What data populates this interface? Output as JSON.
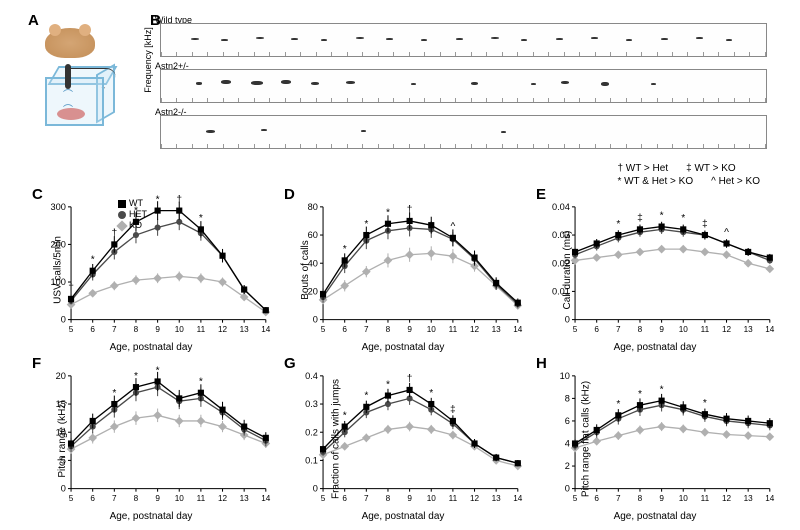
{
  "labels": {
    "A": "A",
    "B": "B",
    "C": "C",
    "D": "D",
    "E": "E",
    "F": "F",
    "G": "G",
    "H": "H"
  },
  "panelB": {
    "rows": [
      {
        "name": "Wild type",
        "calls": [
          {
            "x": 30,
            "y": 14,
            "w": 8,
            "h": 2
          },
          {
            "x": 60,
            "y": 15,
            "w": 7,
            "h": 2
          },
          {
            "x": 95,
            "y": 13,
            "w": 8,
            "h": 2
          },
          {
            "x": 130,
            "y": 14,
            "w": 7,
            "h": 2
          },
          {
            "x": 160,
            "y": 15,
            "w": 6,
            "h": 2
          },
          {
            "x": 195,
            "y": 13,
            "w": 8,
            "h": 2
          },
          {
            "x": 225,
            "y": 14,
            "w": 7,
            "h": 2
          },
          {
            "x": 260,
            "y": 15,
            "w": 6,
            "h": 2
          },
          {
            "x": 295,
            "y": 14,
            "w": 7,
            "h": 2
          },
          {
            "x": 330,
            "y": 13,
            "w": 8,
            "h": 2
          },
          {
            "x": 360,
            "y": 15,
            "w": 6,
            "h": 2
          },
          {
            "x": 395,
            "y": 14,
            "w": 7,
            "h": 2
          },
          {
            "x": 430,
            "y": 13,
            "w": 7,
            "h": 2
          },
          {
            "x": 465,
            "y": 15,
            "w": 6,
            "h": 2
          },
          {
            "x": 500,
            "y": 14,
            "w": 7,
            "h": 2
          },
          {
            "x": 535,
            "y": 13,
            "w": 7,
            "h": 2
          },
          {
            "x": 565,
            "y": 15,
            "w": 6,
            "h": 2
          }
        ]
      },
      {
        "name": "Astn2+/-",
        "calls": [
          {
            "x": 35,
            "y": 12,
            "w": 6,
            "h": 3
          },
          {
            "x": 60,
            "y": 10,
            "w": 10,
            "h": 4
          },
          {
            "x": 90,
            "y": 11,
            "w": 12,
            "h": 4
          },
          {
            "x": 120,
            "y": 10,
            "w": 10,
            "h": 4
          },
          {
            "x": 150,
            "y": 12,
            "w": 8,
            "h": 3
          },
          {
            "x": 185,
            "y": 11,
            "w": 9,
            "h": 3
          },
          {
            "x": 250,
            "y": 13,
            "w": 5,
            "h": 2
          },
          {
            "x": 310,
            "y": 12,
            "w": 7,
            "h": 3
          },
          {
            "x": 370,
            "y": 13,
            "w": 5,
            "h": 2
          },
          {
            "x": 400,
            "y": 11,
            "w": 8,
            "h": 3
          },
          {
            "x": 440,
            "y": 12,
            "w": 8,
            "h": 4
          },
          {
            "x": 490,
            "y": 13,
            "w": 5,
            "h": 2
          }
        ]
      },
      {
        "name": "Astn2-/-",
        "calls": [
          {
            "x": 45,
            "y": 14,
            "w": 9,
            "h": 3
          },
          {
            "x": 100,
            "y": 13,
            "w": 6,
            "h": 2
          },
          {
            "x": 200,
            "y": 14,
            "w": 5,
            "h": 2
          },
          {
            "x": 340,
            "y": 15,
            "w": 5,
            "h": 2
          }
        ]
      }
    ],
    "freq_label": "Frequency [kHz]"
  },
  "topLegend": {
    "r1a": "† WT > Het",
    "r1b": "‡ WT > KO",
    "r2a": "* WT & Het > KO",
    "r2b": "^ Het > KO"
  },
  "innerLegend": {
    "wt": "WT",
    "het": "HET",
    "ko": "KO"
  },
  "colors": {
    "wt": "#000000",
    "het": "#4a4a4a",
    "ko": "#b0b0b0",
    "axis": "#000000"
  },
  "x": {
    "label": "Age, postnatal day",
    "ticks": [
      5,
      6,
      7,
      8,
      9,
      10,
      11,
      12,
      13,
      14
    ]
  },
  "charts": {
    "C": {
      "ylab": "USV calls/5min",
      "ylim": [
        0,
        300
      ],
      "yticks": [
        0,
        100,
        200,
        300
      ],
      "wt": [
        55,
        130,
        200,
        260,
        290,
        290,
        240,
        170,
        80,
        25
      ],
      "het": [
        50,
        120,
        180,
        225,
        245,
        260,
        230,
        170,
        80,
        25
      ],
      "ko": [
        40,
        70,
        90,
        105,
        110,
        115,
        110,
        100,
        60,
        20
      ],
      "ann": [
        {
          "x": 5,
          "s": "†"
        },
        {
          "x": 6,
          "s": "*"
        },
        {
          "x": 7,
          "s": "†"
        },
        {
          "x": 8,
          "s": "*"
        },
        {
          "x": 9,
          "s": "*"
        },
        {
          "x": 10,
          "s": "†"
        },
        {
          "x": 11,
          "s": "*"
        }
      ],
      "err": {
        "wt": [
          12,
          18,
          22,
          25,
          25,
          24,
          22,
          18,
          12,
          8
        ],
        "het": [
          10,
          16,
          20,
          22,
          22,
          22,
          20,
          16,
          11,
          7
        ],
        "ko": [
          8,
          10,
          12,
          13,
          13,
          13,
          13,
          12,
          9,
          6
        ]
      }
    },
    "D": {
      "ylab": "Bouts of calls",
      "ylim": [
        0,
        80
      ],
      "yticks": [
        0,
        20,
        40,
        60,
        80
      ],
      "wt": [
        18,
        42,
        60,
        68,
        70,
        67,
        58,
        44,
        26,
        12
      ],
      "het": [
        16,
        38,
        56,
        63,
        65,
        64,
        57,
        43,
        25,
        11
      ],
      "ko": [
        14,
        24,
        34,
        42,
        46,
        47,
        45,
        38,
        24,
        10
      ],
      "ann": [
        {
          "x": 6,
          "s": "*"
        },
        {
          "x": 7,
          "s": "*"
        },
        {
          "x": 8,
          "s": "*"
        },
        {
          "x": 9,
          "s": "†"
        },
        {
          "x": 11,
          "s": "^"
        }
      ],
      "err": {
        "wt": [
          4,
          5,
          6,
          6,
          6,
          6,
          6,
          5,
          4,
          3
        ],
        "het": [
          4,
          5,
          6,
          6,
          6,
          6,
          5,
          5,
          4,
          3
        ],
        "ko": [
          3,
          4,
          4,
          5,
          5,
          5,
          5,
          4,
          3,
          2
        ]
      }
    },
    "E": {
      "ylab": "Call duration (ms)",
      "ylim": [
        0,
        0.04
      ],
      "yticks": [
        0,
        0.01,
        0.02,
        0.03,
        0.04
      ],
      "wt": [
        0.024,
        0.027,
        0.03,
        0.032,
        0.033,
        0.032,
        0.03,
        0.027,
        0.024,
        0.022
      ],
      "het": [
        0.023,
        0.026,
        0.029,
        0.031,
        0.032,
        0.031,
        0.03,
        0.027,
        0.024,
        0.021
      ],
      "ko": [
        0.021,
        0.022,
        0.023,
        0.024,
        0.025,
        0.025,
        0.024,
        0.023,
        0.02,
        0.018
      ],
      "ann": [
        {
          "x": 7,
          "s": "*"
        },
        {
          "x": 8,
          "s": "‡"
        },
        {
          "x": 9,
          "s": "*"
        },
        {
          "x": 10,
          "s": "*"
        },
        {
          "x": 11,
          "s": "‡"
        },
        {
          "x": 12,
          "s": "^"
        }
      ],
      "err": {
        "wt": [
          0.0015,
          0.0016,
          0.0017,
          0.0017,
          0.0017,
          0.0017,
          0.0016,
          0.0015,
          0.0014,
          0.0013
        ],
        "het": [
          0.0014,
          0.0015,
          0.0016,
          0.0016,
          0.0016,
          0.0016,
          0.0015,
          0.0015,
          0.0013,
          0.0012
        ],
        "ko": [
          0.0012,
          0.0012,
          0.0013,
          0.0013,
          0.0013,
          0.0013,
          0.0013,
          0.0012,
          0.0011,
          0.0011
        ]
      }
    },
    "F": {
      "ylab": "Pitch range (kHz)",
      "ylim": [
        0,
        20
      ],
      "yticks": [
        0,
        5,
        10,
        15,
        20
      ],
      "wt": [
        8,
        12,
        15,
        18,
        19,
        16,
        17,
        14,
        11,
        9
      ],
      "het": [
        7.5,
        11,
        14,
        17,
        18,
        15.5,
        16,
        13.5,
        10.5,
        8.5
      ],
      "ko": [
        7,
        9,
        11,
        12.5,
        13,
        12,
        12,
        11,
        9.5,
        8
      ],
      "ann": [
        {
          "x": 7,
          "s": "*"
        },
        {
          "x": 8,
          "s": "*"
        },
        {
          "x": 9,
          "s": "*"
        },
        {
          "x": 11,
          "s": "*"
        }
      ],
      "err": {
        "wt": [
          1,
          1.3,
          1.5,
          1.6,
          1.7,
          1.5,
          1.5,
          1.4,
          1.2,
          1
        ],
        "het": [
          1,
          1.2,
          1.4,
          1.5,
          1.6,
          1.4,
          1.5,
          1.3,
          1.1,
          1
        ],
        "ko": [
          0.8,
          1,
          1.1,
          1.2,
          1.2,
          1.1,
          1.1,
          1,
          0.9,
          0.8
        ]
      }
    },
    "G": {
      "ylab": "Fraction of calls with jumps",
      "ylim": [
        0,
        0.4
      ],
      "yticks": [
        0,
        0.1,
        0.2,
        0.3,
        0.4
      ],
      "wt": [
        0.14,
        0.22,
        0.29,
        0.33,
        0.35,
        0.3,
        0.24,
        0.16,
        0.11,
        0.09
      ],
      "het": [
        0.13,
        0.2,
        0.27,
        0.3,
        0.32,
        0.28,
        0.23,
        0.16,
        0.11,
        0.09
      ],
      "ko": [
        0.12,
        0.15,
        0.18,
        0.21,
        0.22,
        0.21,
        0.19,
        0.15,
        0.1,
        0.08
      ],
      "ann": [
        {
          "x": 6,
          "s": "*"
        },
        {
          "x": 7,
          "s": "*"
        },
        {
          "x": 8,
          "s": "*"
        },
        {
          "x": 9,
          "s": "†"
        },
        {
          "x": 10,
          "s": "*"
        },
        {
          "x": 11,
          "s": "‡"
        }
      ],
      "err": {
        "wt": [
          0.015,
          0.02,
          0.022,
          0.024,
          0.025,
          0.022,
          0.02,
          0.016,
          0.013,
          0.011
        ],
        "het": [
          0.014,
          0.018,
          0.02,
          0.022,
          0.023,
          0.02,
          0.019,
          0.015,
          0.012,
          0.01
        ],
        "ko": [
          0.012,
          0.014,
          0.015,
          0.016,
          0.017,
          0.016,
          0.015,
          0.013,
          0.011,
          0.01
        ]
      }
    },
    "H": {
      "ylab": "Pitch range flat calls (kHz)",
      "ylim": [
        0,
        10
      ],
      "yticks": [
        0,
        2,
        4,
        6,
        8,
        10
      ],
      "wt": [
        4,
        5.2,
        6.5,
        7.4,
        7.8,
        7.2,
        6.6,
        6.2,
        6.0,
        5.8
      ],
      "het": [
        3.8,
        5.0,
        6.2,
        7.0,
        7.4,
        7.0,
        6.4,
        6.0,
        5.8,
        5.6
      ],
      "ko": [
        3.6,
        4.2,
        4.7,
        5.2,
        5.5,
        5.3,
        5.0,
        4.8,
        4.7,
        4.6
      ],
      "ann": [
        {
          "x": 7,
          "s": "*"
        },
        {
          "x": 8,
          "s": "*"
        },
        {
          "x": 9,
          "s": "*"
        },
        {
          "x": 11,
          "s": "*"
        }
      ],
      "err": {
        "wt": [
          0.4,
          0.5,
          0.55,
          0.6,
          0.6,
          0.55,
          0.5,
          0.5,
          0.48,
          0.45
        ],
        "het": [
          0.38,
          0.48,
          0.52,
          0.56,
          0.56,
          0.52,
          0.48,
          0.47,
          0.45,
          0.43
        ],
        "ko": [
          0.3,
          0.35,
          0.38,
          0.4,
          0.4,
          0.38,
          0.36,
          0.35,
          0.34,
          0.33
        ]
      }
    }
  }
}
